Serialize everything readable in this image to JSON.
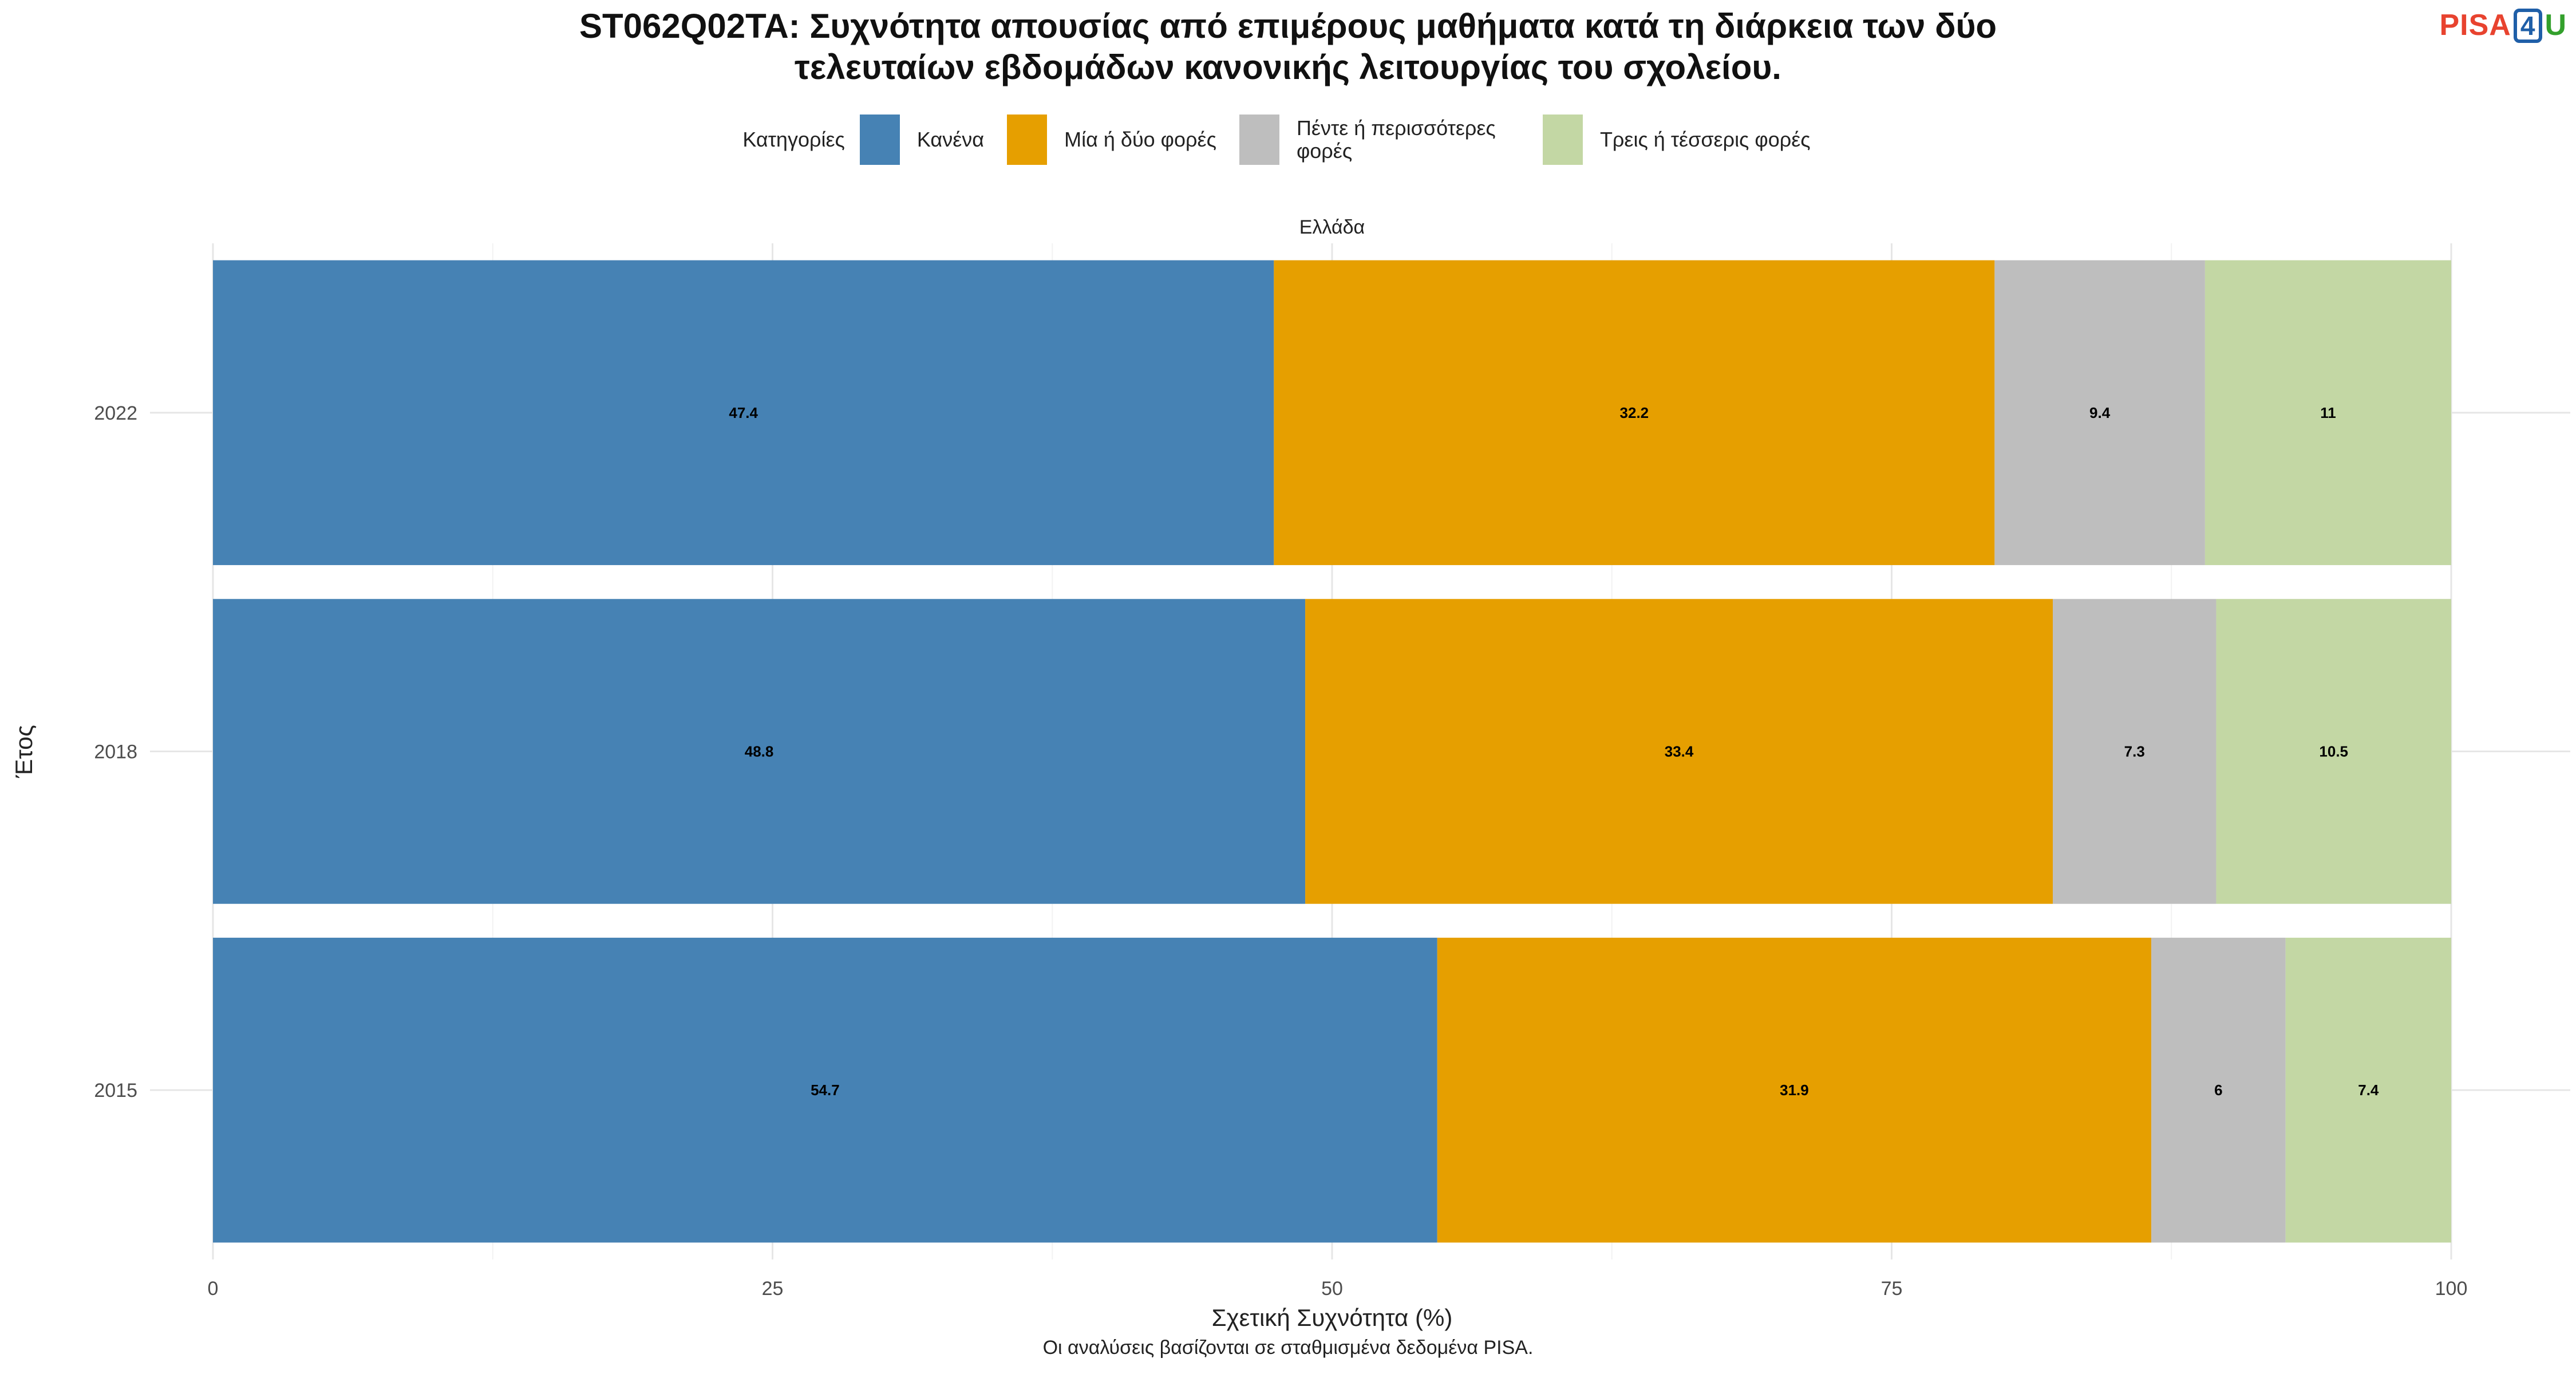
{
  "header": {
    "title_line1": "ST062Q02TA: Συχνότητα απουσίας από επιμέρους μαθήματα κατά τη διάρκεια των δύο",
    "title_line2": "τελευταίων εβδομάδων κανονικής λειτουργίας του σχολείου.",
    "logo": "PISA4U"
  },
  "legend": {
    "title": "Κατηγορίες",
    "items": [
      {
        "label": "Κανένα",
        "color": "#4682B4"
      },
      {
        "label": "Μία ή δύο φορές",
        "color": "#E69F00"
      },
      {
        "label": "Πέντε ή περισσότερες φορές",
        "color": "#BEBEBE"
      },
      {
        "label": "Τρεις ή τέσσερις φορές",
        "color": "#C3D7A4"
      }
    ]
  },
  "caption": "Οι αναλύσεις βασίζονται σε σταθμισμένα δεδομένα PISA.",
  "chart_data": {
    "type": "bar",
    "orientation": "horizontal",
    "stacked": true,
    "facet": "Ελλάδα",
    "categories": [
      "2022",
      "2018",
      "2015"
    ],
    "series": [
      {
        "name": "Κανένα",
        "color": "#4682B4",
        "values": [
          47.4,
          48.8,
          54.7
        ]
      },
      {
        "name": "Μία ή δύο φορές",
        "color": "#E69F00",
        "values": [
          32.2,
          33.4,
          31.9
        ]
      },
      {
        "name": "Πέντε ή περισσότερες φορές",
        "color": "#BEBEBE",
        "values": [
          9.4,
          7.3,
          6
        ]
      },
      {
        "name": "Τρεις ή τέσσερις φορές",
        "color": "#C3D7A4",
        "values": [
          11,
          10.5,
          7.4
        ]
      }
    ],
    "xlabel": "Σχετική Συχνότητα (%)",
    "ylabel": "Έτος",
    "xlim": [
      0,
      100
    ],
    "xticks": [
      0,
      25,
      50,
      75,
      100
    ],
    "grid": true,
    "legend_position": "top"
  }
}
